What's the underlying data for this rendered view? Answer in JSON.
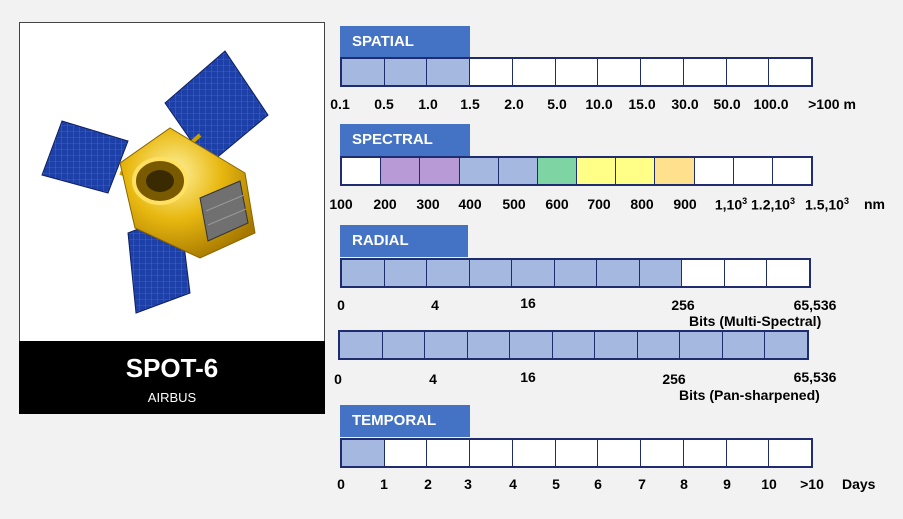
{
  "satellite": {
    "name": "SPOT-6",
    "manufacturer": "AIRBUS",
    "colors": {
      "panel": "#1f3fa0",
      "body": "#e8b810",
      "caption_bg": "#000000"
    }
  },
  "sections": {
    "spatial": {
      "title": "SPATIAL",
      "cells_filled": 3,
      "cells_total": 11,
      "tick_labels": [
        "0.1",
        "0.5",
        "1.0",
        "1.5",
        "2.0",
        "5.0",
        "10.0",
        "15.0",
        "30.0",
        "50.0",
        "100.0",
        ">100 m"
      ]
    },
    "spectral": {
      "title": "SPECTRAL",
      "cell_colors": [
        "#ffffff",
        "#b89ad6",
        "#b89ad6",
        "#a4b8e0",
        "#a4b8e0",
        "#7fd4a4",
        "#ffff88",
        "#ffff88",
        "#ffe08c",
        "#ffffff",
        "#ffffff",
        "#ffffff"
      ],
      "tick_labels": [
        "100",
        "200",
        "300",
        "400",
        "500",
        "600",
        "700",
        "800",
        "900"
      ],
      "extra_labels": [
        {
          "base": "1,10",
          "exp": "3"
        },
        {
          "base": "1.2,10",
          "exp": "3"
        },
        {
          "base": "1.5,10",
          "exp": "3"
        }
      ],
      "unit": "nm"
    },
    "radial": {
      "title": "RADIAL",
      "multispectral": {
        "cells_filled": 8,
        "cells_total": 11,
        "tick_labels": [
          "0",
          "4",
          "16",
          "256",
          "65,536"
        ],
        "caption": "Bits (Multi-Spectral)"
      },
      "pansharpened": {
        "cells_filled": 11,
        "cells_total": 11,
        "tick_labels": [
          "0",
          "4",
          "16",
          "256",
          "65,536"
        ],
        "caption": "Bits (Pan-sharpened)"
      }
    },
    "temporal": {
      "title": "TEMPORAL",
      "cells_filled": 1,
      "cells_total": 11,
      "tick_labels": [
        "0",
        "1",
        "2",
        "3",
        "4",
        "5",
        "6",
        "7",
        "8",
        "9",
        "10",
        ">10"
      ],
      "unit": "Days"
    }
  },
  "colors": {
    "header": "#4472c4",
    "fill": "#a4b8e0",
    "border": "#1f2d6e"
  }
}
